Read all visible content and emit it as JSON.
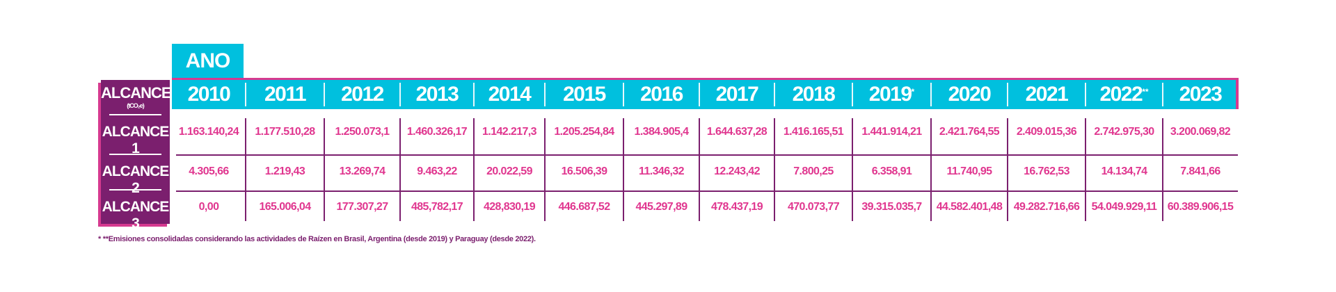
{
  "ano_label": "ANO",
  "alcance_header": "ALCANCE",
  "unit": "(tCO₂e)",
  "years": [
    {
      "label": "2010",
      "mark": ""
    },
    {
      "label": "2011",
      "mark": ""
    },
    {
      "label": "2012",
      "mark": ""
    },
    {
      "label": "2013",
      "mark": ""
    },
    {
      "label": "2014",
      "mark": ""
    },
    {
      "label": "2015",
      "mark": ""
    },
    {
      "label": "2016",
      "mark": ""
    },
    {
      "label": "2017",
      "mark": ""
    },
    {
      "label": "2018",
      "mark": ""
    },
    {
      "label": "2019",
      "mark": "*"
    },
    {
      "label": "2020",
      "mark": ""
    },
    {
      "label": "2021",
      "mark": ""
    },
    {
      "label": "2022",
      "mark": "**"
    },
    {
      "label": "2023",
      "mark": ""
    }
  ],
  "rows": [
    {
      "label": "ALCANCE 1",
      "values": [
        "1.163.140,24",
        "1.177.510,28",
        "1.250.073,1",
        "1.460.326,17",
        "1.142.217,3",
        "1.205.254,84",
        "1.384.905,4",
        "1.644.637,28",
        "1.416.165,51",
        "1.441.914,21",
        "2.421.764,55",
        "2.409.015,36",
        "2.742.975,30",
        "3.200.069,82"
      ]
    },
    {
      "label": "ALCANCE 2",
      "values": [
        "4.305,66",
        "1.219,43",
        "13.269,74",
        "9.463,22",
        "20.022,59",
        "16.506,39",
        "11.346,32",
        "12.243,42",
        "7.800,25",
        "6.358,91",
        "11.740,95",
        "16.762,53",
        "14.134,74",
        "7.841,66"
      ]
    },
    {
      "label": "ALCANCE 3",
      "values": [
        "0,00",
        "165.006,04",
        "177.307,27",
        "485,782,17",
        "428,830,19",
        "446.687,52",
        "445.297,89",
        "478.437,19",
        "470.073,77",
        "39.315.035,7",
        "44.582.401,48",
        "49.282.716,66",
        "54.049.929,11",
        "60.389.906,15"
      ]
    }
  ],
  "footnote": "* **Emisiones consolidadas considerando las actividades de Raízen en Brasil, Argentina (desde 2019) y Paraguay (desde 2022).",
  "colors": {
    "cyan": "#00c0de",
    "purple": "#7b1f6e",
    "pink": "#e0368f"
  }
}
